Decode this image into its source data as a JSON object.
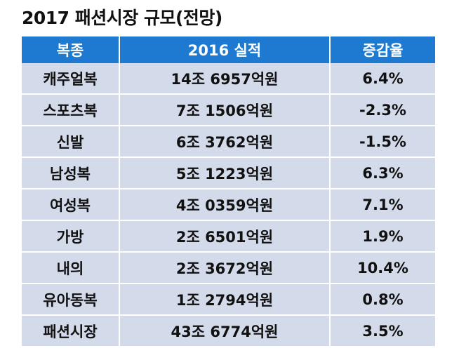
{
  "title": "2017 패션시장 규모(전망)",
  "colors": {
    "header_bg": "#1d7ad0",
    "row_bg": "#d3daea"
  },
  "table": {
    "headers": [
      "복종",
      "2016 실적",
      "증감율"
    ],
    "rows": [
      [
        "캐주얼복",
        "14조 6957억원",
        "6.4%"
      ],
      [
        "스포츠복",
        "7조 1506억원",
        "-2.3%"
      ],
      [
        "신발",
        "6조 3762억원",
        "-1.5%"
      ],
      [
        "남성복",
        "5조 1223억원",
        "6.3%"
      ],
      [
        "여성복",
        "4조 0359억원",
        "7.1%"
      ],
      [
        "가방",
        "2조 6501억원",
        "1.9%"
      ],
      [
        "내의",
        "2조 3672억원",
        "10.4%"
      ],
      [
        "유아동복",
        "1조 2794억원",
        "0.8%"
      ],
      [
        "패션시장",
        "43조 6774억원",
        "3.5%"
      ]
    ]
  }
}
